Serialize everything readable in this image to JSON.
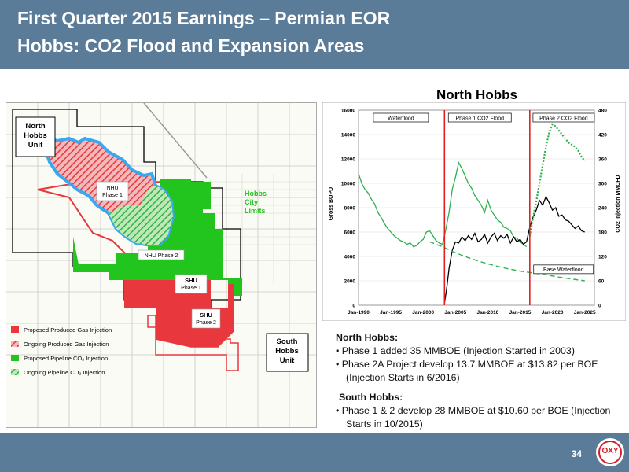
{
  "slide": {
    "title_line1": "First Quarter 2015 Earnings – Permian EOR",
    "title_line2": "Hobbs: CO2 Flood and Expansion Areas",
    "page_number": "34",
    "logo_text": "OXY"
  },
  "map": {
    "labels": {
      "north_hobbs_unit": [
        "North",
        "Hobbs",
        "Unit"
      ],
      "nhu_phase1": [
        "NHU",
        "Phase 1"
      ],
      "nhu_phase2": "NHU Phase 2",
      "hobbs_city_limits": [
        "Hobbs",
        "City",
        "Limits"
      ],
      "shu_phase1": [
        "SHU",
        "Phase 1"
      ],
      "shu_phase2": [
        "SHU",
        "Phase 2"
      ],
      "south_hobbs_unit": [
        "South",
        "Hobbs",
        "Unit"
      ]
    },
    "legend": [
      {
        "label": "Proposed Produced Gas Injection",
        "color": "#e8383d",
        "style": "solid"
      },
      {
        "label": "Ongoing Produced Gas Injection",
        "color": "#e8383d",
        "style": "hatched"
      },
      {
        "label": "Proposed Pipeline CO₂ Injection",
        "color": "#22c41e",
        "style": "solid"
      },
      {
        "label": "Ongoing Pipeline CO₂ Injection",
        "color": "#22a41e",
        "style": "hatched"
      }
    ],
    "colors": {
      "red": "#e8383d",
      "green": "#22c41e",
      "blue": "#3aa8f0"
    }
  },
  "chart_data": {
    "type": "line",
    "title": "North Hobbs",
    "xlabel": "",
    "ylabel": "Gross BOPD",
    "y2label": "CO2 Injection MMCFD",
    "xlim": [
      1990,
      2026.5
    ],
    "ylim": [
      0,
      16000
    ],
    "y2lim": [
      0,
      480
    ],
    "x_ticks": [
      "Jan-1990",
      "Jan-1995",
      "Jan-2000",
      "Jan-2005",
      "Jan-2010",
      "Jan-2015",
      "Jan-2020",
      "Jan-2025"
    ],
    "y_ticks": [
      "0",
      "2000",
      "4000",
      "6000",
      "8000",
      "10000",
      "12000",
      "14000",
      "16000"
    ],
    "y2_ticks": [
      "0",
      "60",
      "120",
      "180",
      "240",
      "300",
      "360",
      "420",
      "480"
    ],
    "phase_lines": [
      2003.3,
      2016.5
    ],
    "annotations": [
      "Waterflood",
      "Phase 1 CO2 Flood",
      "Phase 2 CO2 Flood",
      "Base Waterflood"
    ],
    "series": [
      {
        "style": "solid",
        "color": "#2bb24c",
        "axis": "left",
        "x": [
          1990,
          1990.5,
          1991,
          1991.5,
          1992,
          1992.5,
          1993,
          1993.5,
          1994,
          1994.5,
          1995,
          1995.5,
          1996,
          1996.5,
          1997,
          1997.5,
          1998,
          1998.5,
          1999,
          1999.5,
          2000,
          2000.5,
          2001,
          2001.5,
          2002,
          2002.5,
          2003,
          2003.5,
          2004,
          2004.5,
          2005,
          2005.5,
          2006,
          2006.5,
          2007,
          2007.5,
          2008,
          2008.5,
          2009,
          2009.5,
          2010,
          2010.5,
          2011,
          2011.5,
          2012,
          2012.5,
          2013,
          2013.5,
          2014,
          2014.5,
          2015,
          2015.5,
          2016
        ],
        "y": [
          10800,
          10000,
          9500,
          9200,
          8700,
          8300,
          7600,
          7200,
          6700,
          6300,
          6000,
          5700,
          5500,
          5300,
          5200,
          5000,
          5100,
          4800,
          4900,
          5200,
          5400,
          6000,
          6100,
          5700,
          5300,
          5100,
          5000,
          6200,
          7600,
          9500,
          10500,
          11700,
          11200,
          10600,
          10000,
          9600,
          9000,
          8600,
          8200,
          7600,
          8600,
          7800,
          7400,
          7000,
          6800,
          6400,
          6300,
          6100,
          5600,
          5500,
          5200,
          5000,
          4800
        ]
      },
      {
        "style": "solid",
        "color": "#000000",
        "axis": "left",
        "x": [
          2003.3,
          2003.6,
          2004,
          2004.5,
          2005,
          2005.5,
          2006,
          2006.5,
          2007,
          2007.5,
          2008,
          2008.5,
          2009,
          2009.5,
          2010,
          2010.5,
          2011,
          2011.5,
          2012,
          2012.5,
          2013,
          2013.5,
          2014,
          2014.5,
          2015,
          2015.5,
          2016,
          2016.5,
          2017,
          2017.5,
          2018,
          2018.5,
          2019,
          2019.5,
          2020,
          2020.5,
          2021,
          2021.5,
          2022,
          2022.5,
          2023,
          2023.5,
          2024,
          2024.5,
          2025
        ],
        "y": [
          200,
          1200,
          3000,
          4500,
          5200,
          5100,
          5600,
          5300,
          5700,
          5400,
          5900,
          5200,
          5400,
          5800,
          5100,
          5600,
          5900,
          5300,
          5700,
          5500,
          5800,
          5100,
          5600,
          5200,
          5400,
          5000,
          5200,
          6400,
          7200,
          7800,
          8600,
          8200,
          8900,
          8400,
          7800,
          8000,
          7300,
          7400,
          7000,
          6900,
          6600,
          6300,
          6500,
          6100,
          6000
        ]
      },
      {
        "style": "dotted",
        "color": "#2bb24c",
        "axis": "right",
        "x": [
          2016.5,
          2017,
          2017.5,
          2018,
          2018.5,
          2019,
          2019.5,
          2020,
          2020.5,
          2021,
          2021.5,
          2022,
          2022.5,
          2023,
          2023.5,
          2024,
          2024.5,
          2025
        ],
        "y": [
          170,
          215,
          255,
          300,
          345,
          390,
          425,
          445,
          440,
          430,
          420,
          410,
          400,
          395,
          390,
          380,
          365,
          355
        ]
      },
      {
        "style": "dashed",
        "color": "#2bb24c",
        "axis": "left",
        "x": [
          2001,
          2003,
          2005,
          2007,
          2009,
          2011,
          2013,
          2015,
          2017,
          2019,
          2021,
          2023,
          2025
        ],
        "y": [
          5200,
          4800,
          4300,
          3900,
          3550,
          3250,
          3000,
          2800,
          2650,
          2500,
          2300,
          2150,
          2000
        ]
      }
    ]
  },
  "notes": {
    "north_heading": "North Hobbs:",
    "north_bullets": [
      "• Phase 1 added 35 MMBOE (Injection Started in 2003)",
      "• Phase 2A Project develop 13.7 MMBOE at $13.82 per BOE (Injection Starts in 6/2016)"
    ],
    "south_heading": "South Hobbs:",
    "south_bullets": [
      "• Phase 1 & 2  develop 28 MMBOE at $10.60 per BOE (Injection Starts in 10/2015)"
    ]
  }
}
